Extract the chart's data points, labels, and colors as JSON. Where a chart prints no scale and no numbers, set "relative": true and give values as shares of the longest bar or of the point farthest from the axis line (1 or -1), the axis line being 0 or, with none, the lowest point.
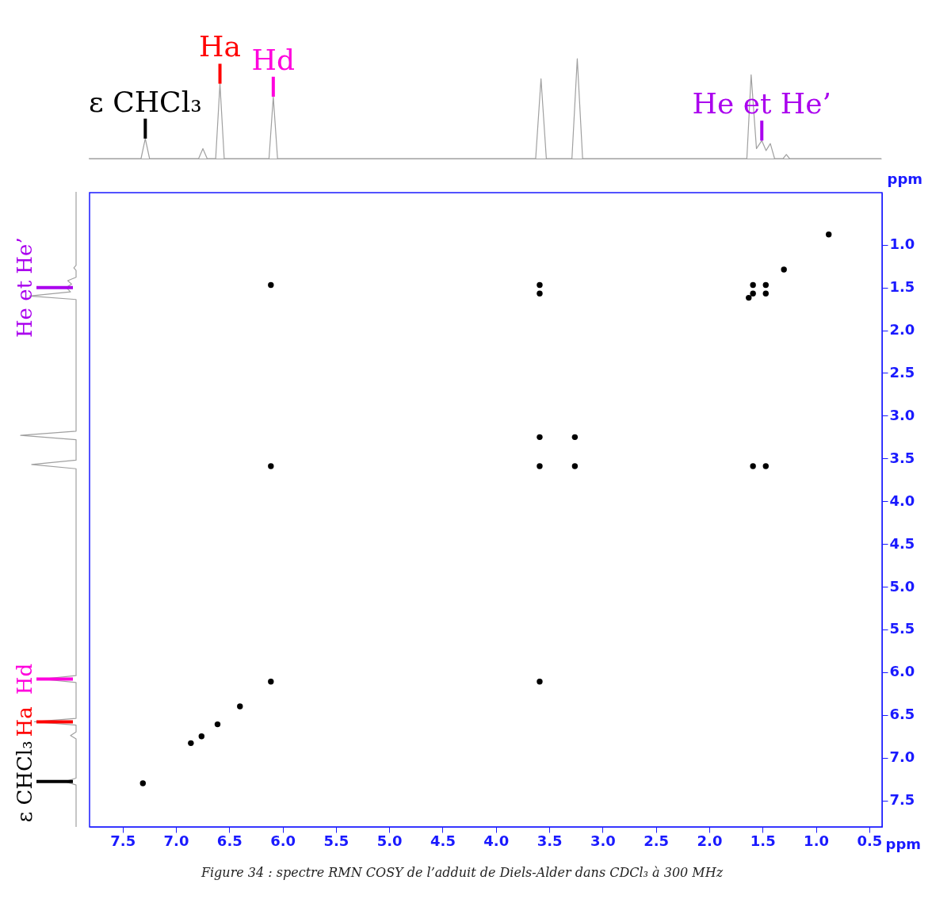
{
  "chart_data": [
    {
      "type": "line",
      "relative": true,
      "tick_labels": false,
      "xlim": [
        7.81,
        0.38
      ],
      "x": [
        7.81,
        7.32,
        7.28,
        7.24,
        6.78,
        6.74,
        6.7,
        6.62,
        6.58,
        6.54,
        6.12,
        6.08,
        6.04,
        3.62,
        3.57,
        3.52,
        3.28,
        3.23,
        3.18,
        1.64,
        1.6,
        1.55,
        1.5,
        1.46,
        1.42,
        1.38,
        1.3,
        1.27,
        1.24,
        0.38
      ],
      "series": [
        {
          "color": "#a0a0a0",
          "values": [
            0,
            0,
            0.2,
            0,
            0,
            0.1,
            0,
            0,
            0.75,
            0,
            0,
            0.62,
            0,
            0,
            0.8,
            0,
            0,
            1.0,
            0,
            0,
            0.84,
            0.1,
            0.18,
            0.08,
            0.15,
            0,
            0,
            0.04,
            0,
            0
          ]
        }
      ],
      "annotations": [
        {
          "text": "ε CHCl₃",
          "x": 7.28,
          "y": 0.2
        },
        {
          "text": "Ha",
          "x": 6.58,
          "y": 0.75
        },
        {
          "text": "Hd",
          "x": 6.08,
          "y": 0.62
        },
        {
          "text": "He et He’",
          "x": 1.5,
          "y": 0.18
        }
      ]
    },
    {
      "type": "scatter",
      "marker": "circle",
      "xlabel": "ppm",
      "ylabel": "ppm",
      "xlim": [
        7.81,
        0.38
      ],
      "ylim": [
        7.81,
        0.39
      ],
      "xticks": [
        {
          "value": 7.5,
          "label": "7.5"
        },
        {
          "value": 7,
          "label": "7.0"
        },
        {
          "value": 6.5,
          "label": "6.5"
        },
        {
          "value": 6,
          "label": "6.0"
        },
        {
          "value": 5.5,
          "label": "5.5"
        },
        {
          "value": 5,
          "label": "5.0"
        },
        {
          "value": 4.5,
          "label": "4.5"
        },
        {
          "value": 4,
          "label": "4.0"
        },
        {
          "value": 3.5,
          "label": "3.5"
        },
        {
          "value": 3,
          "label": "3.0"
        },
        {
          "value": 2.5,
          "label": "2.5"
        },
        {
          "value": 2,
          "label": "2.0"
        },
        {
          "value": 1.5,
          "label": "1.5"
        },
        {
          "value": 1,
          "label": "1.0"
        },
        {
          "value": 0.5,
          "label": "0.5"
        }
      ],
      "yticks": [
        {
          "value": 1,
          "label": "1.0"
        },
        {
          "value": 1.5,
          "label": "1.5"
        },
        {
          "value": 2,
          "label": "2.0"
        },
        {
          "value": 2.5,
          "label": "2.5"
        },
        {
          "value": 3,
          "label": "3.0"
        },
        {
          "value": 3.5,
          "label": "3.5"
        },
        {
          "value": 4,
          "label": "4.0"
        },
        {
          "value": 4.5,
          "label": "4.5"
        },
        {
          "value": 5,
          "label": "5.0"
        },
        {
          "value": 5.5,
          "label": "5.5"
        },
        {
          "value": 6,
          "label": "6.0"
        },
        {
          "value": 6.5,
          "label": "6.5"
        },
        {
          "value": 7,
          "label": "7.0"
        },
        {
          "value": 7.5,
          "label": "7.5"
        }
      ],
      "x": [
        0.88,
        1.3,
        6.11,
        3.59,
        3.59,
        1.59,
        1.47,
        1.59,
        1.47,
        1.63,
        3.59,
        3.26,
        6.11,
        3.59,
        3.26,
        1.59,
        1.47,
        6.11,
        3.59,
        6.4,
        6.61,
        6.76,
        6.86,
        7.31
      ],
      "series": [
        {
          "color": "#000000",
          "values": [
            0.88,
            1.29,
            1.47,
            1.47,
            1.57,
            1.47,
            1.47,
            1.57,
            1.57,
            1.62,
            3.25,
            3.25,
            3.59,
            3.59,
            3.59,
            3.59,
            3.59,
            6.11,
            6.11,
            6.4,
            6.61,
            6.75,
            6.83,
            7.3
          ]
        }
      ],
      "annotations": [
        "Figure 34 : spectre RMN COSY de l’adduit de Diels-Alder dans CDCl₃ à 300 MHz"
      ]
    }
  ]
}
